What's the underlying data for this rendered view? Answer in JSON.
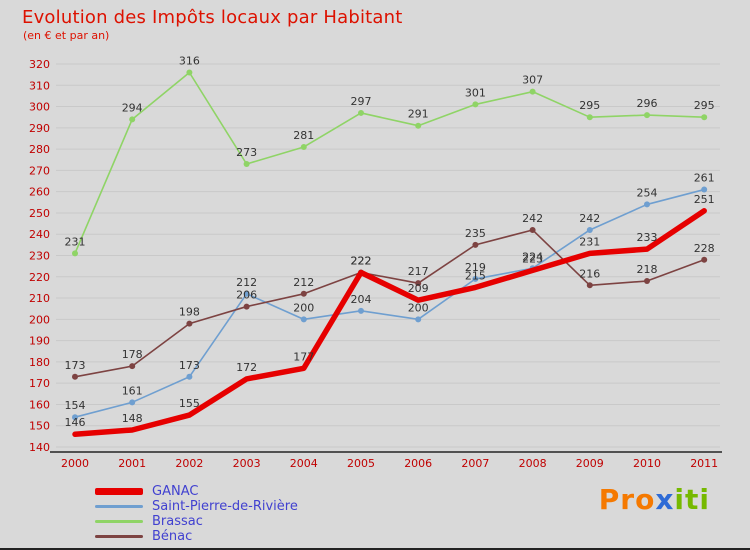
{
  "title": "Evolution des Impôts locaux par Habitant",
  "subtitle": "(en € et par an)",
  "colors": {
    "background": "#d9d9d9",
    "title": "#dd1100",
    "axis_labels": "#c00000",
    "value_labels": "#333333",
    "legend_text": "#4141d0",
    "grid": "#c9c9c9"
  },
  "chart_data": {
    "type": "line",
    "x": [
      2000,
      2001,
      2002,
      2003,
      2004,
      2005,
      2006,
      2007,
      2008,
      2009,
      2010,
      2011
    ],
    "ylim": [
      140,
      320
    ],
    "ytick_step": 10,
    "grid": true,
    "axis_color": "#c00000",
    "label_color": "#333333",
    "legend_position": "bottom-left",
    "series": [
      {
        "name": "GANAC",
        "color": "#e60000",
        "width": 5.5,
        "values": [
          146,
          148,
          155,
          172,
          177,
          222,
          209,
          215,
          223,
          231,
          233,
          251
        ]
      },
      {
        "name": "Saint-Pierre-de-Rivière",
        "color": "#6f9fd0",
        "width": 1.6,
        "values": [
          154,
          161,
          173,
          212,
          200,
          204,
          200,
          219,
          224,
          242,
          254,
          261
        ]
      },
      {
        "name": "Brassac",
        "color": "#8fd466",
        "width": 1.6,
        "values": [
          231,
          294,
          316,
          273,
          281,
          297,
          291,
          301,
          307,
          295,
          296,
          295
        ]
      },
      {
        "name": "Bénac",
        "color": "#7d4342",
        "width": 1.6,
        "values": [
          173,
          178,
          198,
          206,
          212,
          222,
          217,
          235,
          242,
          216,
          218,
          228
        ]
      }
    ]
  },
  "logo": {
    "pro": "Pro",
    "x": "x",
    "iti": "iti",
    "pro_color": "#f57900",
    "x_color": "#2e6bd6",
    "iti_color": "#76b900"
  }
}
